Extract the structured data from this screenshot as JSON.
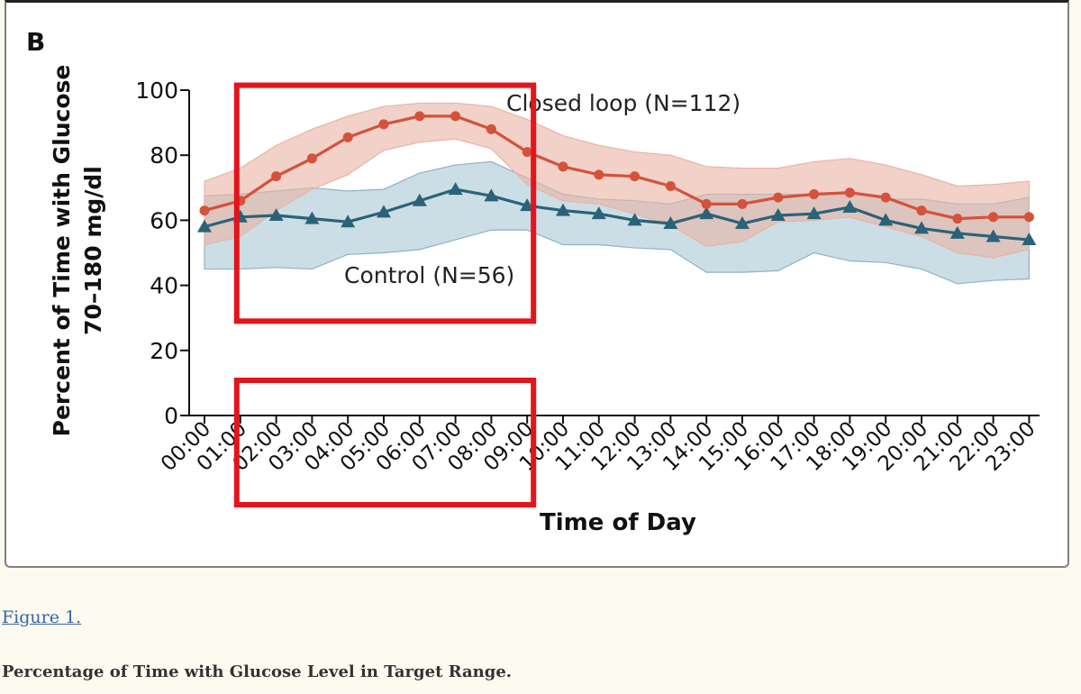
{
  "panel_letter": "B",
  "figure_link": "Figure 1.",
  "figure_caption": "Percentage of Time with Glucose Level in Target Range.",
  "colors": {
    "closed_loop_line": "#d4523a",
    "closed_loop_band": "#e8b4a6",
    "control_line": "#2a6378",
    "control_band": "#a9c7d4",
    "highlight_box": "#e3141b"
  },
  "chart_data": {
    "type": "line",
    "title": "",
    "xlabel": "Time of Day",
    "ylabel_line1": "Percent of Time with Glucose",
    "ylabel_line2": "70–180 mg/dl",
    "ylim": [
      0,
      100
    ],
    "yticks": [
      0,
      20,
      40,
      60,
      80,
      100
    ],
    "categories": [
      "00:00",
      "01:00",
      "02:00",
      "03:00",
      "04:00",
      "05:00",
      "06:00",
      "07:00",
      "08:00",
      "09:00",
      "10:00",
      "11:00",
      "12:00",
      "13:00",
      "14:00",
      "15:00",
      "16:00",
      "17:00",
      "18:00",
      "19:00",
      "20:00",
      "21:00",
      "22:00",
      "23:00"
    ],
    "series": [
      {
        "name": "Closed loop (N=112)",
        "marker": "circle",
        "values": [
          63,
          66,
          73.5,
          79,
          85.5,
          89.5,
          92,
          92,
          88,
          81,
          76.5,
          74,
          73.5,
          70.5,
          65,
          65,
          67,
          68,
          68.5,
          67,
          63,
          60.5,
          61,
          61
        ],
        "band_upper": [
          72,
          76,
          83,
          88,
          92,
          95,
          96,
          96,
          95,
          91,
          86,
          83,
          81,
          80,
          76.5,
          76,
          76,
          78,
          79,
          77,
          74,
          70.5,
          71,
          72
        ],
        "band_lower": [
          52.5,
          55,
          63,
          69.5,
          74,
          81.5,
          84,
          85,
          82,
          71,
          66,
          65,
          62,
          58.5,
          52,
          53.5,
          59.5,
          60,
          61,
          58,
          55,
          50,
          48.5,
          51
        ]
      },
      {
        "name": "Control (N=56)",
        "marker": "triangle",
        "values": [
          58,
          61,
          61.5,
          60.5,
          59.5,
          62.5,
          66,
          69.5,
          67.5,
          64.5,
          63,
          62,
          60,
          59,
          62,
          59,
          61.5,
          62,
          64,
          60,
          57.5,
          56,
          55,
          54
        ],
        "band_upper": [
          67.5,
          68,
          69,
          70,
          69,
          69.5,
          74.5,
          77,
          78,
          73,
          68,
          66.5,
          66,
          65,
          68,
          68,
          68,
          68,
          68.5,
          66.5,
          66.5,
          65,
          65,
          67
        ],
        "band_lower": [
          45,
          45,
          45.5,
          45,
          49.5,
          50,
          51,
          54,
          57,
          57,
          52.5,
          52.5,
          51.5,
          51,
          44,
          44,
          44.5,
          50,
          47.5,
          47,
          45,
          40.5,
          41.5,
          42
        ]
      }
    ],
    "annotations": [
      "Closed loop (N=112)",
      "Control (N=56)"
    ],
    "highlights": [
      {
        "from": "01:00",
        "to": "09:00",
        "y_from": 29,
        "y_to": 101.5
      },
      {
        "from": "01:00",
        "to": "09:00",
        "region": "x-axis-labels"
      }
    ]
  }
}
